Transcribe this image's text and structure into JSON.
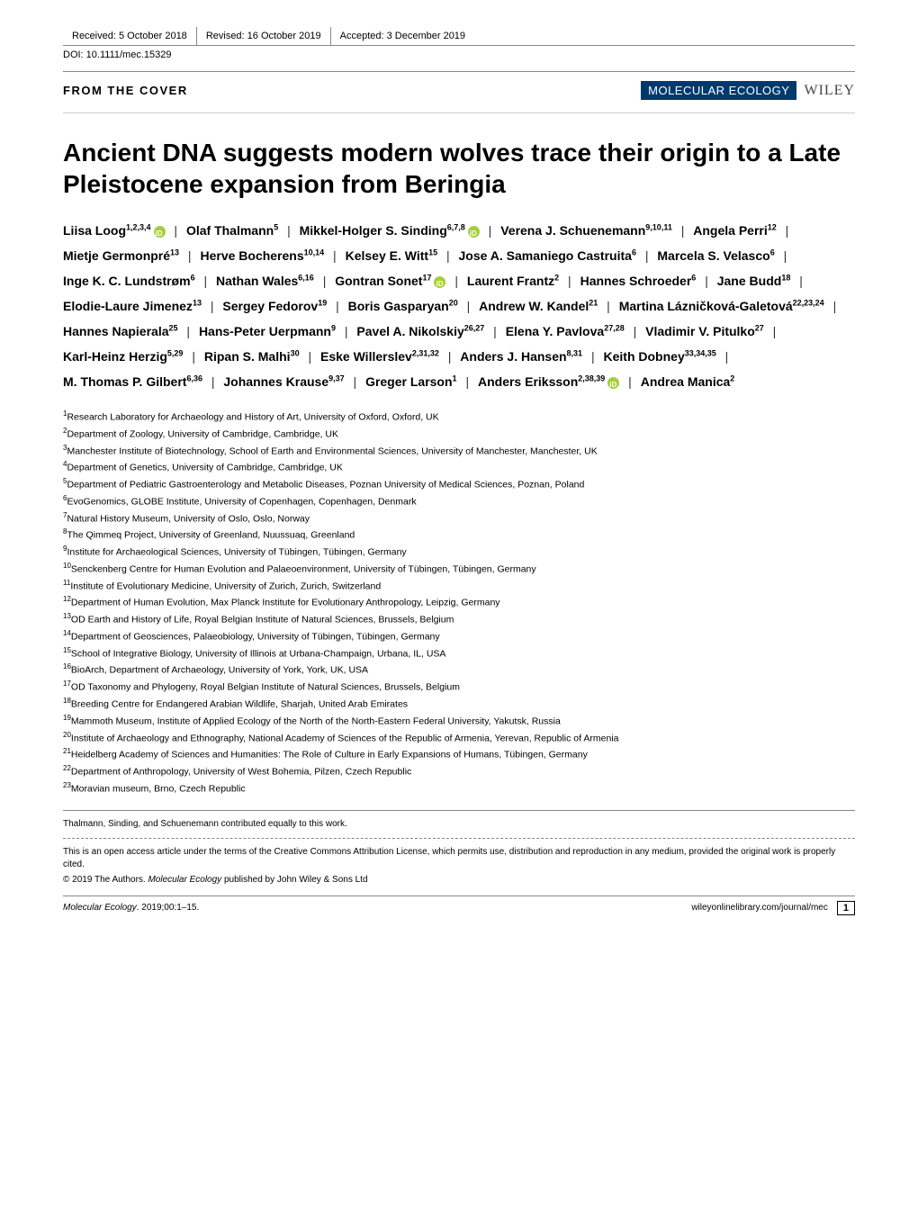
{
  "header": {
    "received": "Received: 5 October 2018",
    "revised": "Revised: 16 October 2019",
    "accepted": "Accepted: 3 December 2019",
    "doi": "DOI: 10.1111/mec.15329"
  },
  "section_label": "FROM THE COVER",
  "journal_name": "MOLECULAR ECOLOGY",
  "publisher": "WILEY",
  "title": "Ancient DNA suggests modern wolves trace their origin to a Late Pleistocene expansion from Beringia",
  "authors": [
    {
      "name": "Liisa Loog",
      "affil": "1,2,3,4",
      "orcid": true
    },
    {
      "name": "Olaf Thalmann",
      "affil": "5"
    },
    {
      "name": "Mikkel-Holger S. Sinding",
      "affil": "6,7,8",
      "orcid": true
    },
    {
      "name": "Verena J. Schuenemann",
      "affil": "9,10,11"
    },
    {
      "name": "Angela Perri",
      "affil": "12"
    },
    {
      "name": "Mietje Germonpré",
      "affil": "13"
    },
    {
      "name": "Herve Bocherens",
      "affil": "10,14"
    },
    {
      "name": "Kelsey E. Witt",
      "affil": "15"
    },
    {
      "name": "Jose A. Samaniego Castruita",
      "affil": "6"
    },
    {
      "name": "Marcela S. Velasco",
      "affil": "6"
    },
    {
      "name": "Inge K. C. Lundstrøm",
      "affil": "6"
    },
    {
      "name": "Nathan Wales",
      "affil": "6,16"
    },
    {
      "name": "Gontran Sonet",
      "affil": "17",
      "orcid": true
    },
    {
      "name": "Laurent Frantz",
      "affil": "2"
    },
    {
      "name": "Hannes Schroeder",
      "affil": "6"
    },
    {
      "name": "Jane Budd",
      "affil": "18"
    },
    {
      "name": "Elodie-Laure Jimenez",
      "affil": "13"
    },
    {
      "name": "Sergey Fedorov",
      "affil": "19"
    },
    {
      "name": "Boris Gasparyan",
      "affil": "20"
    },
    {
      "name": "Andrew W. Kandel",
      "affil": "21"
    },
    {
      "name": "Martina Lázničková-Galetová",
      "affil": "22,23,24"
    },
    {
      "name": "Hannes Napierala",
      "affil": "25"
    },
    {
      "name": "Hans-Peter Uerpmann",
      "affil": "9"
    },
    {
      "name": "Pavel A. Nikolskiy",
      "affil": "26,27"
    },
    {
      "name": "Elena Y. Pavlova",
      "affil": "27,28"
    },
    {
      "name": "Vladimir V. Pitulko",
      "affil": "27"
    },
    {
      "name": "Karl-Heinz Herzig",
      "affil": "5,29"
    },
    {
      "name": "Ripan S. Malhi",
      "affil": "30"
    },
    {
      "name": "Eske Willerslev",
      "affil": "2,31,32"
    },
    {
      "name": "Anders J. Hansen",
      "affil": "8,31"
    },
    {
      "name": "Keith Dobney",
      "affil": "33,34,35"
    },
    {
      "name": "M. Thomas P. Gilbert",
      "affil": "6,36"
    },
    {
      "name": "Johannes Krause",
      "affil": "9,37"
    },
    {
      "name": "Greger Larson",
      "affil": "1"
    },
    {
      "name": "Anders Eriksson",
      "affil": "2,38,39",
      "orcid": true
    },
    {
      "name": "Andrea Manica",
      "affil": "2"
    }
  ],
  "affiliations": [
    {
      "n": "1",
      "text": "Research Laboratory for Archaeology and History of Art, University of Oxford, Oxford, UK"
    },
    {
      "n": "2",
      "text": "Department of Zoology, University of Cambridge, Cambridge, UK"
    },
    {
      "n": "3",
      "text": "Manchester Institute of Biotechnology, School of Earth and Environmental Sciences, University of Manchester, Manchester, UK"
    },
    {
      "n": "4",
      "text": "Department of Genetics, University of Cambridge, Cambridge, UK"
    },
    {
      "n": "5",
      "text": "Department of Pediatric Gastroenterology and Metabolic Diseases, Poznan University of Medical Sciences, Poznan, Poland"
    },
    {
      "n": "6",
      "text": "EvoGenomics, GLOBE Institute, University of Copenhagen, Copenhagen, Denmark"
    },
    {
      "n": "7",
      "text": "Natural History Museum, University of Oslo, Oslo, Norway"
    },
    {
      "n": "8",
      "text": "The Qimmeq Project, University of Greenland, Nuussuaq, Greenland"
    },
    {
      "n": "9",
      "text": "Institute for Archaeological Sciences, University of Tübingen, Tübingen, Germany"
    },
    {
      "n": "10",
      "text": "Senckenberg Centre for Human Evolution and Palaeoenvironment, University of Tübingen, Tübingen, Germany"
    },
    {
      "n": "11",
      "text": "Institute of Evolutionary Medicine, University of Zurich, Zurich, Switzerland"
    },
    {
      "n": "12",
      "text": "Department of Human Evolution, Max Planck Institute for Evolutionary Anthropology, Leipzig, Germany"
    },
    {
      "n": "13",
      "text": "OD Earth and History of Life, Royal Belgian Institute of Natural Sciences, Brussels, Belgium"
    },
    {
      "n": "14",
      "text": "Department of Geosciences, Palaeobiology, University of Tübingen, Tübingen, Germany"
    },
    {
      "n": "15",
      "text": "School of Integrative Biology, University of Illinois at Urbana-Champaign, Urbana, IL, USA"
    },
    {
      "n": "16",
      "text": "BioArch, Department of Archaeology, University of York, York, UK, USA"
    },
    {
      "n": "17",
      "text": "OD Taxonomy and Phylogeny, Royal Belgian Institute of Natural Sciences, Brussels, Belgium"
    },
    {
      "n": "18",
      "text": "Breeding Centre for Endangered Arabian Wildlife, Sharjah, United Arab Emirates"
    },
    {
      "n": "19",
      "text": "Mammoth Museum, Institute of Applied Ecology of the North of the North-Eastern Federal University, Yakutsk, Russia"
    },
    {
      "n": "20",
      "text": "Institute of Archaeology and Ethnography, National Academy of Sciences of the Republic of Armenia, Yerevan, Republic of Armenia"
    },
    {
      "n": "21",
      "text": "Heidelberg Academy of Sciences and Humanities: The Role of Culture in Early Expansions of Humans, Tübingen, Germany"
    },
    {
      "n": "22",
      "text": "Department of Anthropology, University of West Bohemia, Pilzen, Czech Republic"
    },
    {
      "n": "23",
      "text": "Moravian museum, Brno, Czech Republic"
    }
  ],
  "equal_contrib": "Thalmann, Sinding, and Schuenemann contributed equally to this work.",
  "license": "This is an open access article under the terms of the Creative Commons Attribution License, which permits use, distribution and reproduction in any medium, provided the original work is properly cited.",
  "copyright_prefix": "© 2019 The Authors. ",
  "copyright_italic": "Molecular Ecology",
  "copyright_suffix": " published by John Wiley & Sons Ltd",
  "footer": {
    "citation_italic": "Molecular Ecology",
    "citation_rest": ". 2019;00:1–15.",
    "url": "wileyonlinelibrary.com/journal/mec",
    "page": "1"
  }
}
